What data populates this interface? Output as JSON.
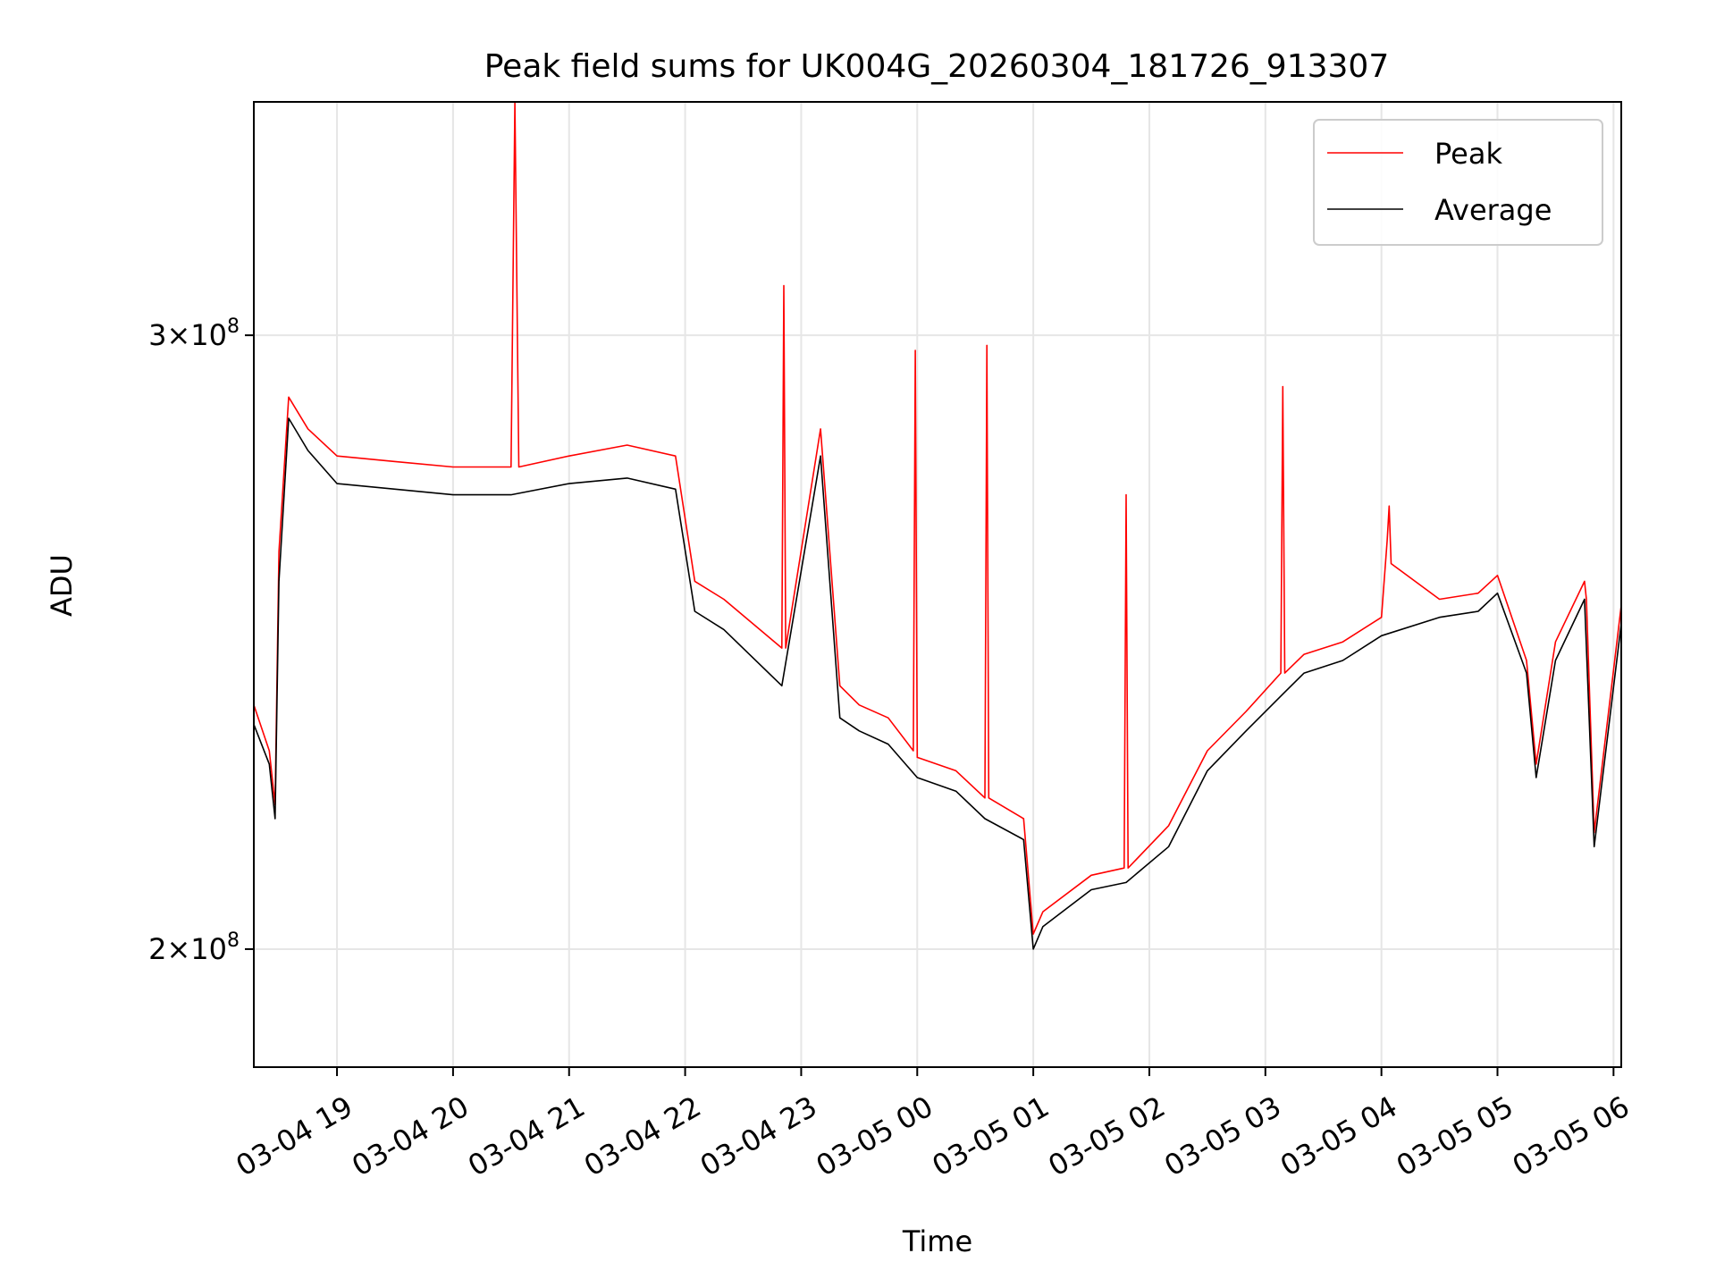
{
  "chart_data": {
    "type": "line",
    "title": "Peak field sums for UK004G_20260304_181726_913307",
    "xlabel": "Time",
    "ylabel": "ADU",
    "y_scale": "log",
    "ylim": [
      185000000,
      350000000
    ],
    "xlim": [
      "2026-03-04 18:17",
      "2026-03-05 06:04"
    ],
    "x_ticks": [
      {
        "t": "2026-03-04 19:00",
        "label": "03-04 19"
      },
      {
        "t": "2026-03-04 20:00",
        "label": "03-04 20"
      },
      {
        "t": "2026-03-04 21:00",
        "label": "03-04 21"
      },
      {
        "t": "2026-03-04 22:00",
        "label": "03-04 22"
      },
      {
        "t": "2026-03-04 23:00",
        "label": "03-04 23"
      },
      {
        "t": "2026-03-05 00:00",
        "label": "03-05 00"
      },
      {
        "t": "2026-03-05 01:00",
        "label": "03-05 01"
      },
      {
        "t": "2026-03-05 02:00",
        "label": "03-05 02"
      },
      {
        "t": "2026-03-05 03:00",
        "label": "03-05 03"
      },
      {
        "t": "2026-03-05 04:00",
        "label": "03-05 04"
      },
      {
        "t": "2026-03-05 05:00",
        "label": "03-05 05"
      },
      {
        "t": "2026-03-05 06:00",
        "label": "03-05 06"
      }
    ],
    "y_ticks": [
      {
        "value": 200000000,
        "mantissa": "2",
        "exponent": "8"
      },
      {
        "value": 300000000,
        "mantissa": "3",
        "exponent": "8"
      }
    ],
    "grid": true,
    "legend": "top-right",
    "series": [
      {
        "name": "Peak",
        "color": "#ff0000",
        "t": [
          "2026-03-04 18:17",
          "2026-03-04 18:25",
          "2026-03-04 18:28",
          "2026-03-04 18:30",
          "2026-03-04 18:35",
          "2026-03-04 18:45",
          "2026-03-04 19:00",
          "2026-03-04 19:30",
          "2026-03-04 20:00",
          "2026-03-04 20:30",
          "2026-03-04 20:32",
          "2026-03-04 20:34",
          "2026-03-04 21:00",
          "2026-03-04 21:30",
          "2026-03-04 21:55",
          "2026-03-04 22:05",
          "2026-03-04 22:20",
          "2026-03-04 22:50",
          "2026-03-04 22:51",
          "2026-03-04 22:52",
          "2026-03-04 23:10",
          "2026-03-04 23:20",
          "2026-03-04 23:30",
          "2026-03-04 23:45",
          "2026-03-04 23:58",
          "2026-03-04 23:59",
          "2026-03-05 00:00",
          "2026-03-05 00:20",
          "2026-03-05 00:35",
          "2026-03-05 00:36",
          "2026-03-05 00:37",
          "2026-03-05 00:55",
          "2026-03-05 01:00",
          "2026-03-05 01:05",
          "2026-03-05 01:30",
          "2026-03-05 01:47",
          "2026-03-05 01:48",
          "2026-03-05 01:49",
          "2026-03-05 02:10",
          "2026-03-05 02:30",
          "2026-03-05 02:50",
          "2026-03-05 03:08",
          "2026-03-05 03:09",
          "2026-03-05 03:10",
          "2026-03-05 03:20",
          "2026-03-05 03:40",
          "2026-03-05 04:00",
          "2026-03-05 04:03",
          "2026-03-05 04:04",
          "2026-03-05 04:05",
          "2026-03-05 04:30",
          "2026-03-05 04:50",
          "2026-03-05 05:00",
          "2026-03-05 05:15",
          "2026-03-05 05:20",
          "2026-03-05 05:30",
          "2026-03-05 05:45",
          "2026-03-05 05:46",
          "2026-03-05 05:50",
          "2026-03-05 06:04"
        ],
        "values": [
          235000000,
          228000000,
          220000000,
          260000000,
          288000000,
          282000000,
          277000000,
          276000000,
          275000000,
          275000000,
          350000000,
          275000000,
          277000000,
          279000000,
          277000000,
          255000000,
          252000000,
          244000000,
          310000000,
          244000000,
          282000000,
          238000000,
          235000000,
          233000000,
          228000000,
          297000000,
          227000000,
          225000000,
          221000000,
          298000000,
          221000000,
          218000000,
          202000000,
          205000000,
          210000000,
          211000000,
          270000000,
          211000000,
          217000000,
          228000000,
          234000000,
          240000000,
          290000000,
          240000000,
          243000000,
          245000000,
          249000000,
          262000000,
          268000000,
          258000000,
          252000000,
          253000000,
          256000000,
          242000000,
          226000000,
          245000000,
          255000000,
          252000000,
          216000000,
          251000000
        ]
      },
      {
        "name": "Average",
        "color": "#000000",
        "t": [
          "2026-03-04 18:17",
          "2026-03-04 18:25",
          "2026-03-04 18:28",
          "2026-03-04 18:30",
          "2026-03-04 18:35",
          "2026-03-04 18:45",
          "2026-03-04 19:00",
          "2026-03-04 19:30",
          "2026-03-04 20:00",
          "2026-03-04 20:30",
          "2026-03-04 21:00",
          "2026-03-04 21:30",
          "2026-03-04 21:55",
          "2026-03-04 22:05",
          "2026-03-04 22:20",
          "2026-03-04 22:50",
          "2026-03-04 23:10",
          "2026-03-04 23:20",
          "2026-03-04 23:30",
          "2026-03-04 23:45",
          "2026-03-05 00:00",
          "2026-03-05 00:20",
          "2026-03-05 00:35",
          "2026-03-05 00:55",
          "2026-03-05 01:00",
          "2026-03-05 01:05",
          "2026-03-05 01:30",
          "2026-03-05 01:48",
          "2026-03-05 02:10",
          "2026-03-05 02:30",
          "2026-03-05 02:50",
          "2026-03-05 03:10",
          "2026-03-05 03:20",
          "2026-03-05 03:40",
          "2026-03-05 04:00",
          "2026-03-05 04:30",
          "2026-03-05 04:50",
          "2026-03-05 05:00",
          "2026-03-05 05:15",
          "2026-03-05 05:20",
          "2026-03-05 05:30",
          "2026-03-05 05:45",
          "2026-03-05 05:50",
          "2026-03-05 06:04"
        ],
        "values": [
          232000000,
          226000000,
          218000000,
          255000000,
          284000000,
          278000000,
          272000000,
          271000000,
          270000000,
          270000000,
          272000000,
          273000000,
          271000000,
          250000000,
          247000000,
          238000000,
          277000000,
          233000000,
          231000000,
          229000000,
          224000000,
          222000000,
          218000000,
          215000000,
          200000000,
          203000000,
          208000000,
          209000000,
          214000000,
          225000000,
          231000000,
          237000000,
          240000000,
          242000000,
          246000000,
          249000000,
          250000000,
          253000000,
          240000000,
          224000000,
          242000000,
          252000000,
          214000000,
          248000000
        ]
      }
    ]
  }
}
